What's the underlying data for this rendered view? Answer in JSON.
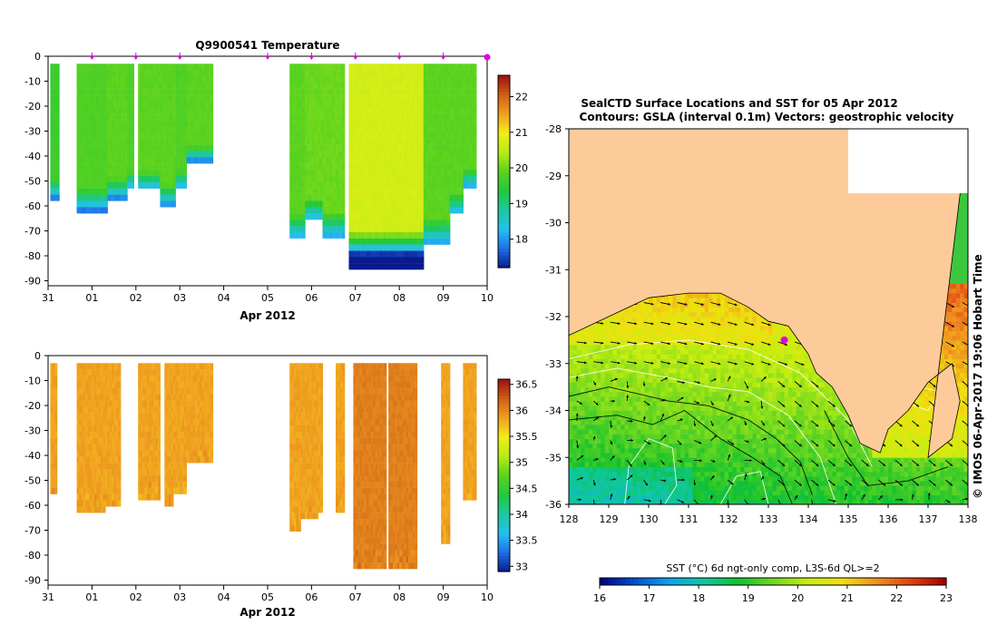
{
  "colors": {
    "land": "#fdcb9a",
    "marker": "#e000e0",
    "temp_scale": [
      "#0a1a8c",
      "#1e6ee6",
      "#26c0f0",
      "#1cc8a0",
      "#22c83c",
      "#5ad21e",
      "#b4ec14",
      "#f2ee18",
      "#f0a020",
      "#d06018",
      "#a01010"
    ],
    "sal_scale": [
      "#0a1a8c",
      "#1e6ee6",
      "#26c0f0",
      "#1cc8a0",
      "#22c83c",
      "#5ad21e",
      "#b4ec14",
      "#f2ee18",
      "#f0a020",
      "#d06018",
      "#a01010"
    ],
    "sst_scale": [
      "#000080",
      "#0050d0",
      "#10a0f0",
      "#10c8a0",
      "#10c030",
      "#70d820",
      "#c8ee10",
      "#f0e010",
      "#f09020",
      "#e04010",
      "#a00000"
    ]
  },
  "chart_data": [
    {
      "type": "heatmap",
      "id": "temperature",
      "title": "Q9900541  Temperature",
      "xlabel": "Apr 2012",
      "xticks": [
        "31",
        "01",
        "02",
        "03",
        "04",
        "05",
        "06",
        "07",
        "08",
        "09",
        "10"
      ],
      "xlim": [
        0,
        10
      ],
      "ylim": [
        -92,
        0
      ],
      "yticks": [
        "0",
        "-10",
        "-20",
        "-30",
        "-40",
        "-50",
        "-60",
        "-70",
        "-80",
        "-90"
      ],
      "colorbar": {
        "range": [
          17.2,
          22.6
        ],
        "ticks": [
          "18",
          "19",
          "20",
          "21",
          "22"
        ]
      },
      "profile_markers_days": [
        1,
        2,
        3,
        5,
        6,
        7,
        8,
        9
      ],
      "profile_marker_last": 10,
      "profiles": [
        {
          "x0": 0.05,
          "x1": 0.25,
          "depth": 57,
          "v": 19.6
        },
        {
          "x0": 0.65,
          "x1": 1.35,
          "depth": 61,
          "v": 19.8
        },
        {
          "x0": 1.35,
          "x1": 1.8,
          "depth": 56,
          "v": 19.9
        },
        {
          "x0": 1.8,
          "x1": 1.95,
          "depth": 53,
          "v": 19.8
        },
        {
          "x0": 2.05,
          "x1": 2.55,
          "depth": 53,
          "v": 19.9
        },
        {
          "x0": 2.55,
          "x1": 2.9,
          "depth": 59,
          "v": 19.9
        },
        {
          "x0": 2.9,
          "x1": 3.15,
          "depth": 53,
          "v": 19.8
        },
        {
          "x0": 3.15,
          "x1": 3.75,
          "depth": 41,
          "v": 19.9
        },
        {
          "x0": 5.5,
          "x1": 5.85,
          "depth": 73,
          "v": 19.9
        },
        {
          "x0": 5.85,
          "x1": 6.25,
          "depth": 65,
          "v": 20.0
        },
        {
          "x0": 6.25,
          "x1": 6.75,
          "depth": 72,
          "v": 20.0
        },
        {
          "x0": 6.85,
          "x1": 8.55,
          "depth": 85,
          "v": 20.7
        },
        {
          "x0": 8.55,
          "x1": 9.15,
          "depth": 75,
          "v": 19.9
        },
        {
          "x0": 9.15,
          "x1": 9.45,
          "depth": 63,
          "v": 19.9
        },
        {
          "x0": 9.45,
          "x1": 9.75,
          "depth": 52,
          "v": 19.9
        }
      ]
    },
    {
      "type": "heatmap",
      "id": "salinity",
      "title": "",
      "xlabel": "Apr 2012",
      "xticks": [
        "31",
        "01",
        "02",
        "03",
        "04",
        "05",
        "06",
        "07",
        "08",
        "09",
        "10"
      ],
      "xlim": [
        0,
        10
      ],
      "ylim": [
        -92,
        0
      ],
      "yticks": [
        "0",
        "-10",
        "-20",
        "-30",
        "-40",
        "-50",
        "-60",
        "-70",
        "-80",
        "-90"
      ],
      "colorbar": {
        "range": [
          32.9,
          36.6
        ],
        "ticks": [
          "33",
          "33.5",
          "34",
          "34.5",
          "35",
          "35.5",
          "36",
          "36.5"
        ]
      },
      "profiles": [
        {
          "x0": 0.05,
          "x1": 0.2,
          "depth": 55,
          "v": 35.85
        },
        {
          "x0": 0.65,
          "x1": 1.05,
          "depth": 61,
          "v": 35.85
        },
        {
          "x0": 1.05,
          "x1": 1.3,
          "depth": 61,
          "v": 35.85
        },
        {
          "x0": 1.3,
          "x1": 1.65,
          "depth": 59,
          "v": 35.85
        },
        {
          "x0": 2.05,
          "x1": 2.25,
          "depth": 57,
          "v": 35.85
        },
        {
          "x0": 2.25,
          "x1": 2.55,
          "depth": 56,
          "v": 35.85
        },
        {
          "x0": 2.65,
          "x1": 2.85,
          "depth": 59,
          "v": 35.85
        },
        {
          "x0": 2.85,
          "x1": 3.15,
          "depth": 55,
          "v": 35.85
        },
        {
          "x0": 3.15,
          "x1": 3.75,
          "depth": 41,
          "v": 35.85
        },
        {
          "x0": 5.5,
          "x1": 5.75,
          "depth": 69,
          "v": 35.85
        },
        {
          "x0": 5.75,
          "x1": 6.15,
          "depth": 65,
          "v": 35.85
        },
        {
          "x0": 6.15,
          "x1": 6.25,
          "depth": 63,
          "v": 35.85
        },
        {
          "x0": 6.55,
          "x1": 6.75,
          "depth": 63,
          "v": 35.85
        },
        {
          "x0": 6.95,
          "x1": 7.7,
          "depth": 84,
          "v": 36.05
        },
        {
          "x0": 7.75,
          "x1": 8.4,
          "depth": 85,
          "v": 36.05
        },
        {
          "x0": 8.95,
          "x1": 9.15,
          "depth": 75,
          "v": 35.85
        },
        {
          "x0": 9.45,
          "x1": 9.75,
          "depth": 57,
          "v": 35.85
        }
      ]
    },
    {
      "type": "heatmap",
      "id": "sst-map",
      "title": "SealCTD Surface Locations and SST for 05 Apr 2012",
      "subtitle": "Contours: GSLA (interval 0.1m) Vectors: geostrophic velocity",
      "xticks": [
        "128",
        "129",
        "130",
        "131",
        "132",
        "133",
        "134",
        "135",
        "136",
        "137",
        "138"
      ],
      "yticks": [
        "-28",
        "-29",
        "-30",
        "-31",
        "-32",
        "-33",
        "-34",
        "-35",
        "-36"
      ],
      "xlim": [
        128,
        138
      ],
      "ylim": [
        -36,
        -28
      ],
      "credit": "© IMOS 06-Apr-2017 19:06 Hobart Time",
      "colorbar": {
        "title": "SST (°C) 6d ngt-only comp, L3S-6d QL>=2",
        "range": [
          16,
          23
        ],
        "ticks": [
          "16",
          "17",
          "18",
          "19",
          "20",
          "21",
          "22",
          "23"
        ]
      },
      "seal_location": {
        "lon": 133.4,
        "lat": -32.5
      },
      "coastline": [
        [
          128,
          -32.4
        ],
        [
          129.0,
          -32.0
        ],
        [
          130.0,
          -31.6
        ],
        [
          131.0,
          -31.5
        ],
        [
          131.8,
          -31.5
        ],
        [
          132.5,
          -31.8
        ],
        [
          133.0,
          -32.1
        ],
        [
          133.5,
          -32.2
        ],
        [
          134.0,
          -32.8
        ],
        [
          134.2,
          -33.2
        ],
        [
          134.6,
          -33.5
        ],
        [
          135.0,
          -34.1
        ],
        [
          135.3,
          -34.7
        ],
        [
          135.8,
          -34.9
        ],
        [
          136.0,
          -34.4
        ],
        [
          136.5,
          -34.0
        ],
        [
          137.0,
          -33.4
        ],
        [
          137.6,
          -33.0
        ],
        [
          137.8,
          -33.8
        ],
        [
          137.6,
          -34.6
        ],
        [
          137.0,
          -35.0
        ],
        [
          136.9,
          -35.3
        ],
        [
          137.4,
          -35.1
        ],
        [
          138.0,
          -34.8
        ],
        [
          138,
          -28
        ],
        [
          135,
          -28
        ],
        [
          135,
          -29.35
        ],
        [
          138,
          -29.35
        ]
      ],
      "currents": {
        "speed_ms": "geostrophic",
        "scale": 1
      }
    }
  ]
}
